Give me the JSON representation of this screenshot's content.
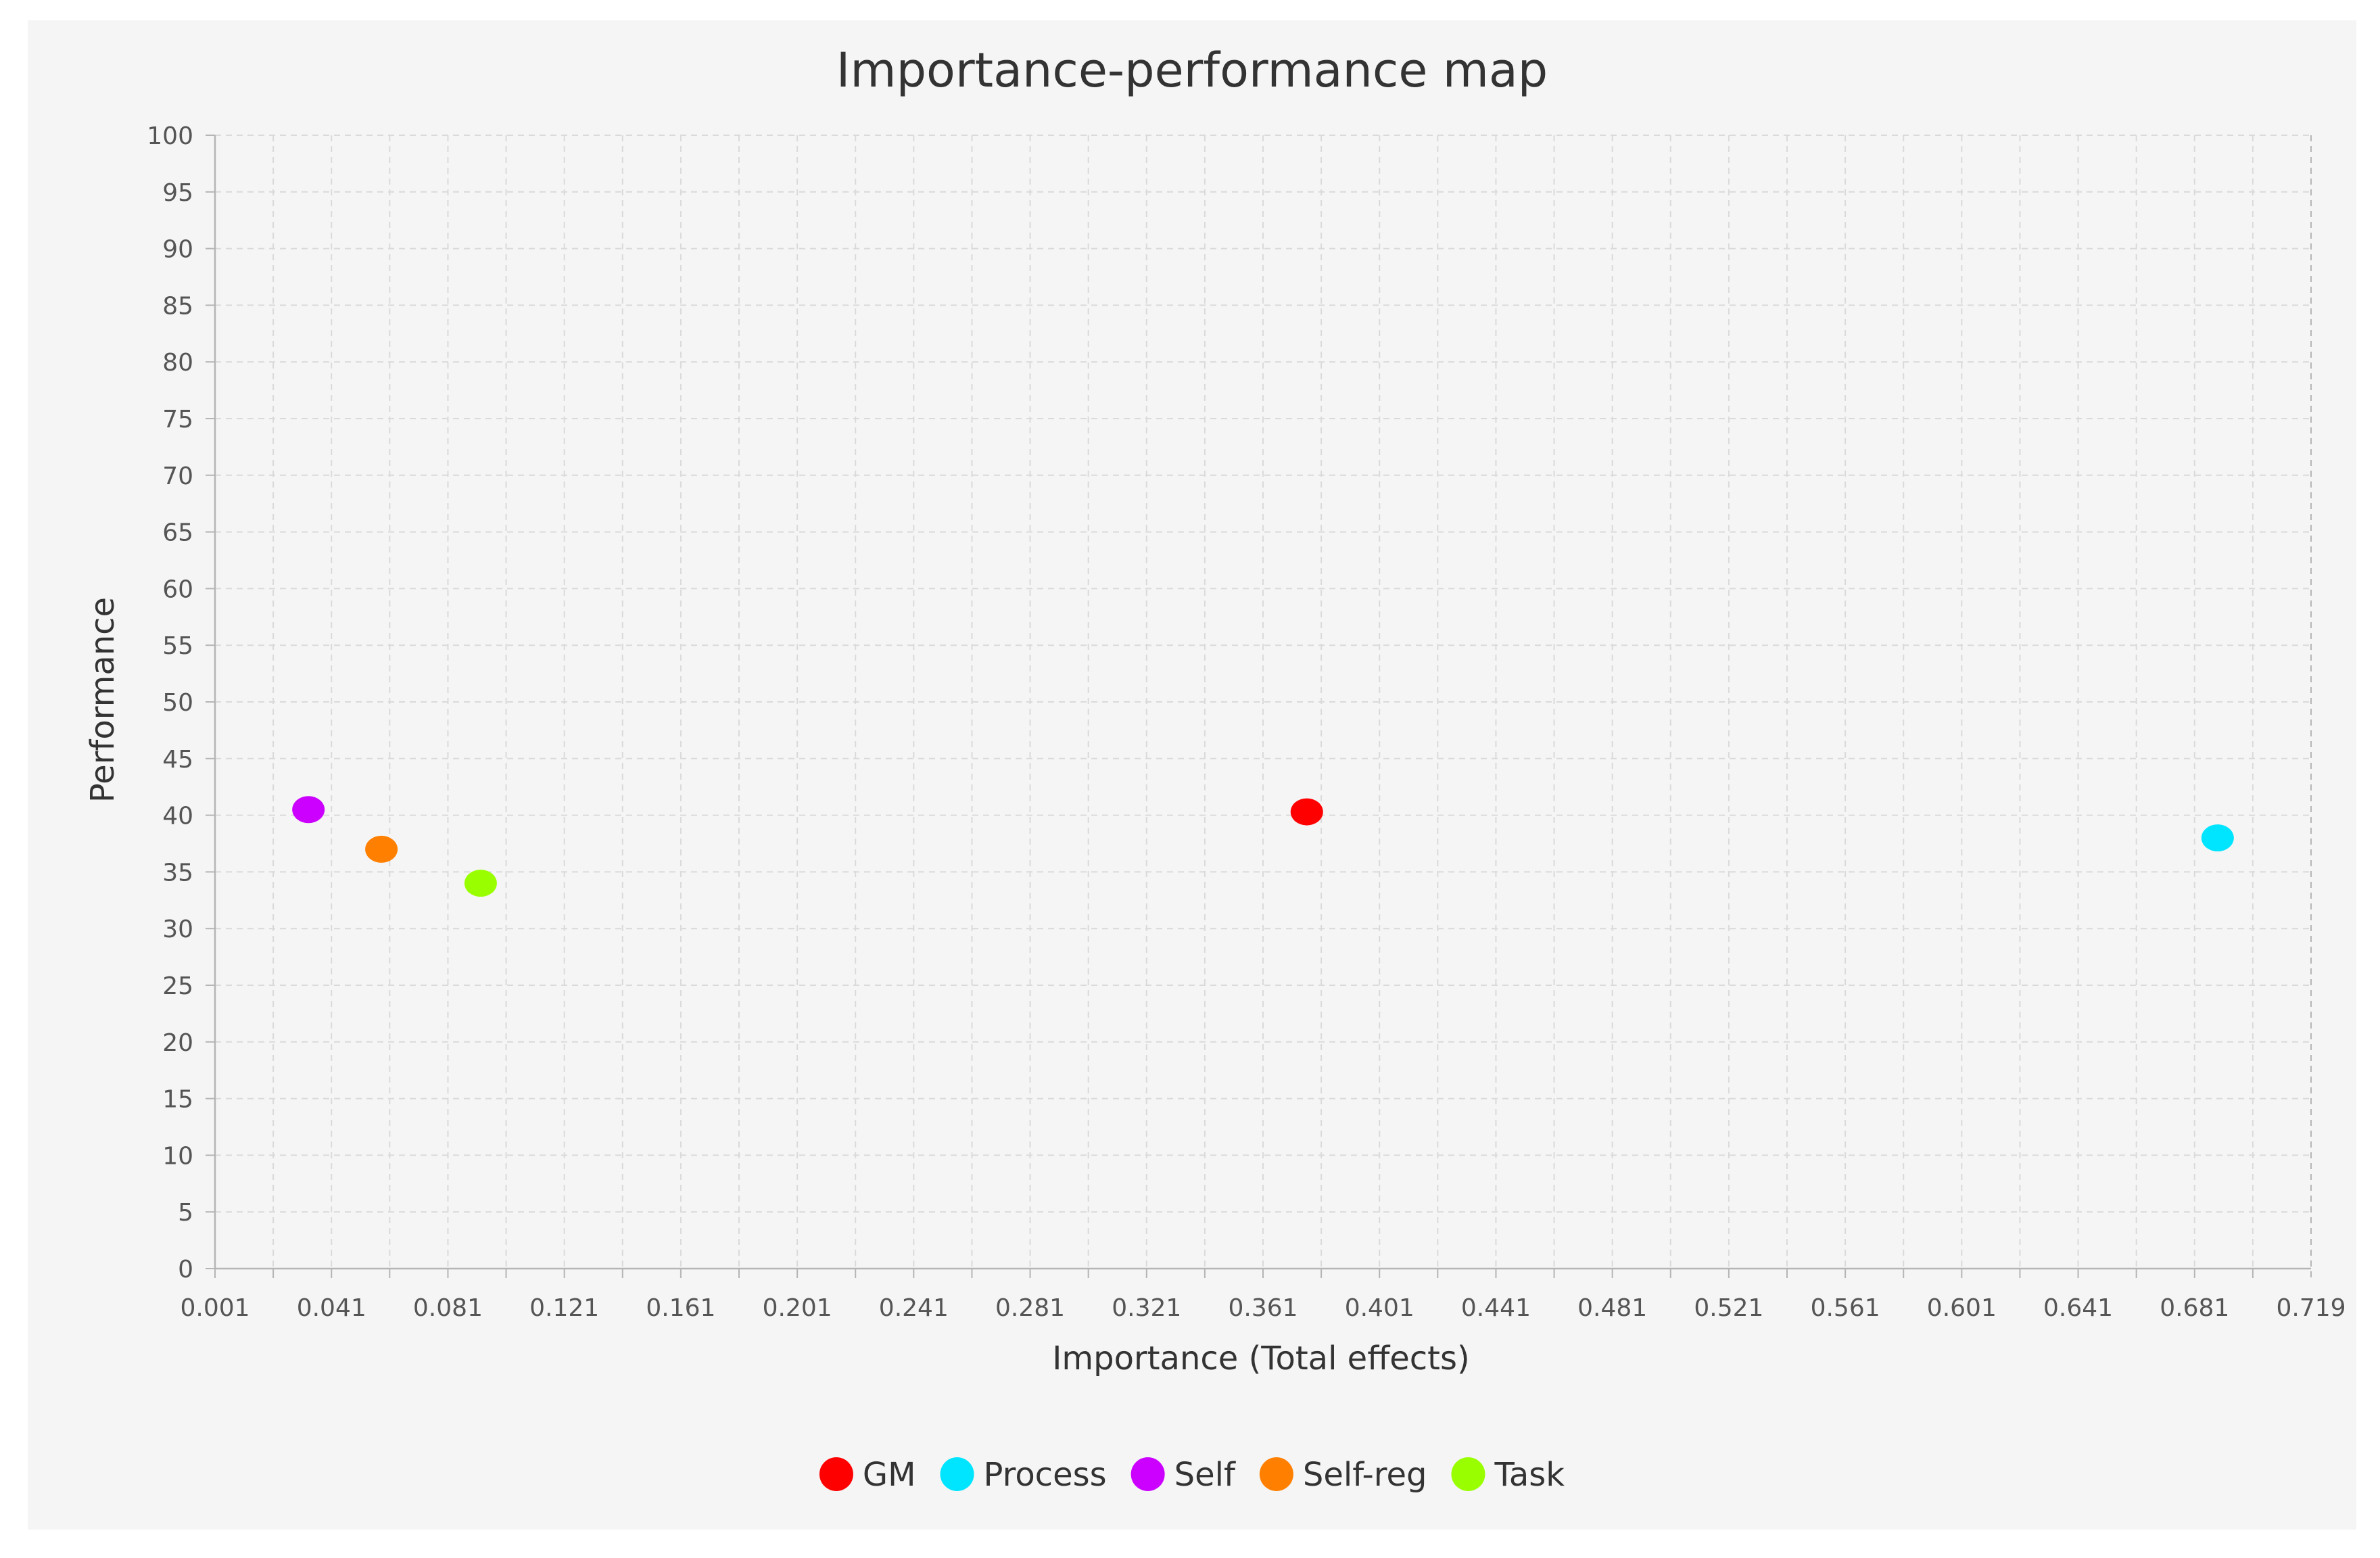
{
  "chart_data": {
    "type": "scatter",
    "title": "Importance-performance map",
    "xlabel": "Importance (Total effects)",
    "ylabel": "Performance",
    "xlim": [
      0.001,
      0.719
    ],
    "ylim": [
      0,
      100
    ],
    "x_ticks": [
      "0.001",
      "0.041",
      "0.081",
      "0.121",
      "0.161",
      "0.201",
      "0.241",
      "0.281",
      "0.321",
      "0.361",
      "0.401",
      "0.441",
      "0.481",
      "0.521",
      "0.561",
      "0.601",
      "0.641",
      "0.681",
      "0.719"
    ],
    "y_ticks": [
      "0",
      "5",
      "10",
      "15",
      "20",
      "25",
      "30",
      "35",
      "40",
      "45",
      "50",
      "55",
      "60",
      "65",
      "70",
      "75",
      "80",
      "85",
      "90",
      "95",
      "100"
    ],
    "grid": true,
    "legend_position": "bottom-center",
    "series": [
      {
        "name": "GM",
        "color": "#ff0000",
        "x": 0.375,
        "y": 40.3
      },
      {
        "name": "Process",
        "color": "#00e5ff",
        "x": 0.687,
        "y": 38.0
      },
      {
        "name": "Self",
        "color": "#cc00ff",
        "x": 0.033,
        "y": 40.5
      },
      {
        "name": "Self-reg",
        "color": "#ff8000",
        "x": 0.058,
        "y": 37.0
      },
      {
        "name": "Task",
        "color": "#99ff00",
        "x": 0.092,
        "y": 34.0
      }
    ]
  }
}
